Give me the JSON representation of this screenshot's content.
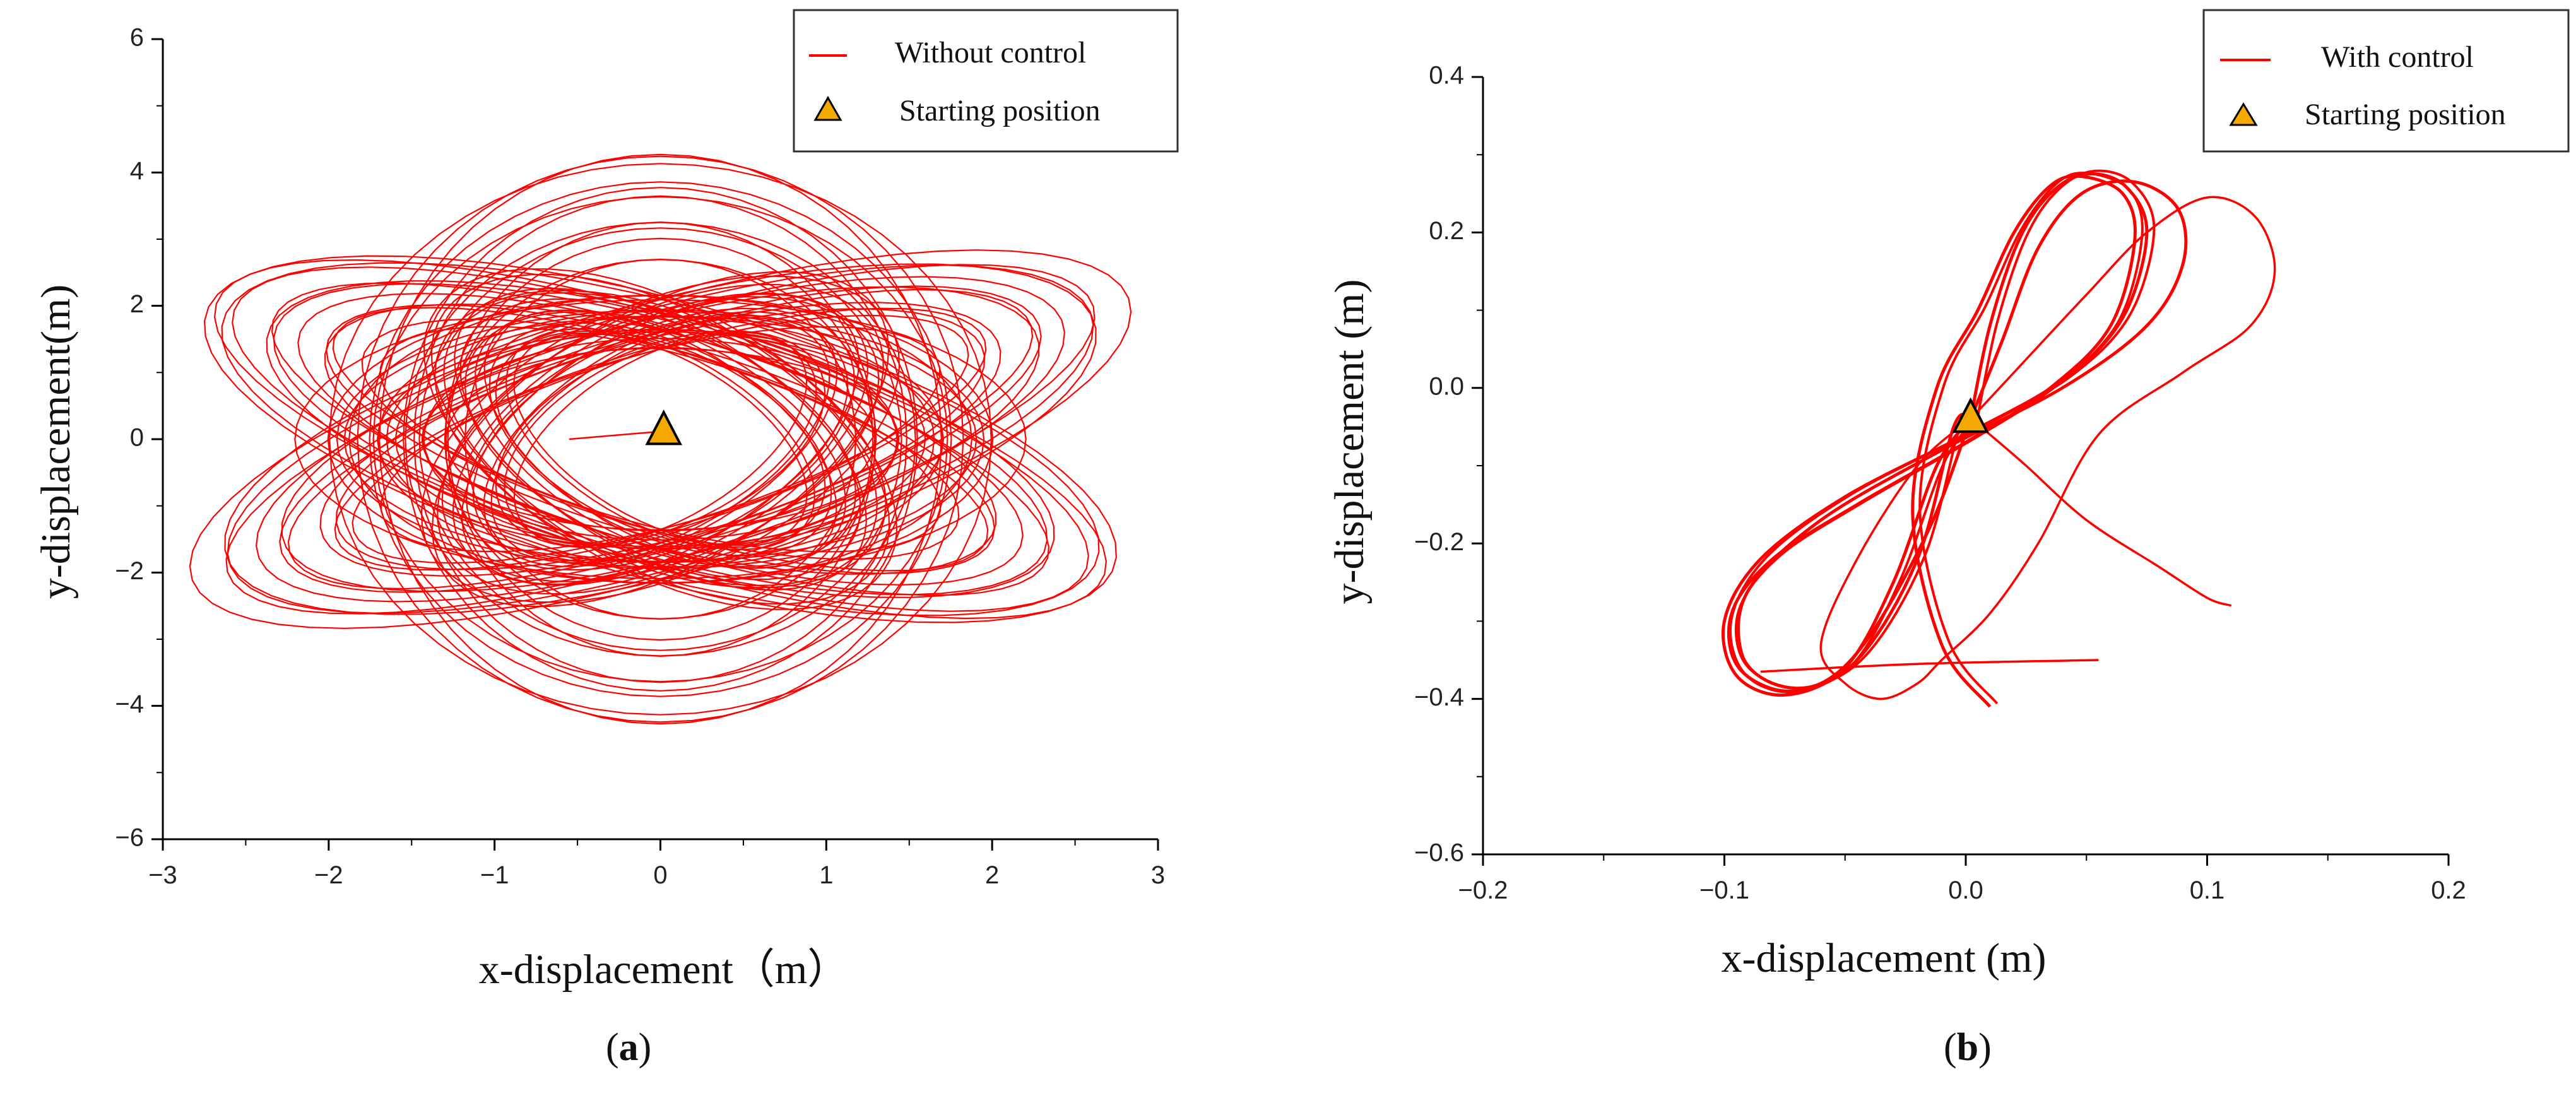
{
  "chart_data": [
    {
      "type": "line",
      "panel_label": "a",
      "xlabel": "x-displacement（m）",
      "ylabel": "y-displacement(m)",
      "xlim": [
        -3,
        3
      ],
      "ylim": [
        -6,
        6
      ],
      "xticks": [
        -3,
        -2,
        -1,
        0,
        1,
        2,
        3
      ],
      "yticks": [
        -6,
        -4,
        -2,
        0,
        2,
        4,
        6
      ],
      "xtick_labels": [
        "−3",
        "−2",
        "−1",
        "0",
        "1",
        "2",
        "3"
      ],
      "ytick_labels": [
        "−6",
        "−4",
        "−2",
        "0",
        "2",
        "4",
        "6"
      ],
      "legend": {
        "position": "top-right",
        "entries": [
          "Without control",
          "Starting position"
        ]
      },
      "series": [
        {
          "name": "Without control",
          "color": "#ff0000",
          "trajectory": {
            "rotated_loops": [
              {
                "rx": 1.9,
                "ry": 4.35,
                "angle_deg": 0
              },
              {
                "rx": 1.65,
                "ry": 3.6,
                "angle_deg": 45
              },
              {
                "rx": 1.65,
                "ry": 3.6,
                "angle_deg": -45
              },
              {
                "rx": 2.2,
                "ry": 2.1,
                "angle_deg": 90
              },
              {
                "rx": 1.2,
                "ry": 2.6,
                "angle_deg": 20
              },
              {
                "rx": 1.2,
                "ry": 2.6,
                "angle_deg": -20
              }
            ],
            "start_segment": [
              [
                -0.55,
                0.0
              ],
              [
                0.02,
                0.12
              ]
            ]
          }
        }
      ],
      "start_point": {
        "x": 0.02,
        "y": 0.12,
        "color": "#f5a800"
      }
    },
    {
      "type": "line",
      "panel_label": "b",
      "xlabel": "x-displacement (m)",
      "ylabel": "y-displacement (m)",
      "xlim": [
        -0.2,
        0.2
      ],
      "ylim": [
        -0.6,
        0.4
      ],
      "xticks": [
        -0.2,
        -0.1,
        0.0,
        0.1,
        0.2
      ],
      "yticks": [
        -0.6,
        -0.4,
        -0.2,
        0.0,
        0.2,
        0.4
      ],
      "xtick_labels": [
        "−0.2",
        "−0.1",
        "0.0",
        "0.1",
        "0.2"
      ],
      "ytick_labels": [
        "−0.6",
        "−0.4",
        "−0.2",
        "0.0",
        "0.2",
        "0.4"
      ],
      "legend": {
        "position": "top-right",
        "entries": [
          "With  control",
          "Starting position"
        ]
      },
      "series": [
        {
          "name": "With  control",
          "color": "#ff0000",
          "loops": [
            [
              [
                0.01,
                -0.41
              ],
              [
                -0.01,
                -0.33
              ],
              [
                -0.022,
                -0.16
              ],
              [
                -0.012,
                0.0
              ],
              [
                0.005,
                0.1
              ],
              [
                0.02,
                0.2
              ],
              [
                0.035,
                0.26
              ],
              [
                0.048,
                0.272
              ],
              [
                0.065,
                0.25
              ],
              [
                0.07,
                0.19
              ],
              [
                0.06,
                0.08
              ],
              [
                0.035,
                0.0
              ],
              [
                0.0,
                -0.07
              ],
              [
                -0.045,
                -0.15
              ],
              [
                -0.08,
                -0.22
              ],
              [
                -0.097,
                -0.29
              ],
              [
                -0.094,
                -0.36
              ],
              [
                -0.072,
                -0.39
              ],
              [
                -0.045,
                -0.35
              ],
              [
                -0.02,
                -0.22
              ],
              [
                -0.005,
                -0.05
              ],
              [
                0.002,
                -0.04
              ]
            ],
            [
              [
                0.002,
                -0.04
              ],
              [
                0.01,
                0.08
              ],
              [
                0.022,
                0.19
              ],
              [
                0.035,
                0.25
              ],
              [
                0.05,
                0.275
              ],
              [
                0.066,
                0.26
              ],
              [
                0.075,
                0.2
              ],
              [
                0.065,
                0.09
              ],
              [
                0.04,
                0.01
              ],
              [
                0.0,
                -0.06
              ],
              [
                -0.05,
                -0.14
              ],
              [
                -0.085,
                -0.22
              ],
              [
                -0.1,
                -0.3
              ],
              [
                -0.095,
                -0.37
              ],
              [
                -0.075,
                -0.395
              ],
              [
                -0.05,
                -0.36
              ],
              [
                -0.03,
                -0.25
              ],
              [
                -0.012,
                -0.1
              ],
              [
                0.002,
                -0.04
              ]
            ],
            [
              [
                0.002,
                -0.04
              ],
              [
                0.015,
                0.06
              ],
              [
                0.03,
                0.18
              ],
              [
                0.048,
                0.25
              ],
              [
                0.07,
                0.265
              ],
              [
                0.088,
                0.23
              ],
              [
                0.09,
                0.16
              ],
              [
                0.075,
                0.08
              ],
              [
                0.04,
                0.0
              ],
              [
                -0.01,
                -0.08
              ],
              [
                -0.06,
                -0.17
              ],
              [
                -0.09,
                -0.26
              ],
              [
                -0.093,
                -0.34
              ],
              [
                -0.08,
                -0.38
              ],
              [
                -0.06,
                -0.38
              ],
              [
                -0.04,
                -0.32
              ],
              [
                -0.015,
                -0.18
              ],
              [
                0.002,
                -0.04
              ]
            ],
            [
              [
                0.002,
                -0.04
              ],
              [
                0.02,
                0.02
              ],
              [
                0.05,
                0.12
              ],
              [
                0.075,
                0.2
              ],
              [
                0.1,
                0.245
              ],
              [
                0.12,
                0.22
              ],
              [
                0.128,
                0.15
              ],
              [
                0.118,
                0.08
              ],
              [
                0.09,
                0.02
              ],
              [
                0.055,
                -0.06
              ],
              [
                0.03,
                -0.2
              ],
              [
                0.01,
                -0.29
              ],
              [
                -0.01,
                -0.35
              ],
              [
                -0.02,
                -0.38
              ],
              [
                -0.035,
                -0.4
              ],
              [
                -0.05,
                -0.38
              ],
              [
                -0.06,
                -0.33
              ],
              [
                -0.045,
                -0.22
              ],
              [
                -0.02,
                -0.1
              ],
              [
                0.002,
                -0.04
              ]
            ],
            [
              [
                0.055,
                -0.35
              ],
              [
                -0.02,
                -0.355
              ],
              [
                -0.085,
                -0.365
              ]
            ],
            [
              [
                0.002,
                -0.04
              ],
              [
                0.01,
                -0.06
              ],
              [
                0.025,
                -0.1
              ],
              [
                0.05,
                -0.17
              ],
              [
                0.08,
                -0.23
              ],
              [
                0.1,
                -0.27
              ],
              [
                0.11,
                -0.28
              ]
            ]
          ]
        }
      ],
      "start_point": {
        "x": 0.002,
        "y": -0.04,
        "color": "#f5a800"
      }
    }
  ]
}
